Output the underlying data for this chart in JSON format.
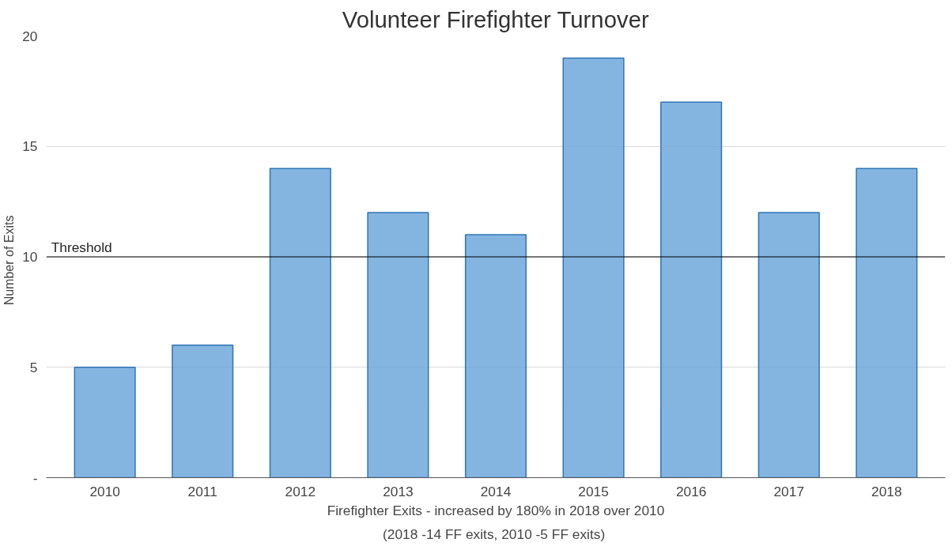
{
  "chart_data": {
    "type": "bar",
    "title": "Volunteer Firefighter Turnover",
    "ylabel": "Number  of  Exits",
    "xlabel": "Firefighter Exits - increased by 180% in 2018 over 2010",
    "annotations": [
      "(2018 -14 FF exits,  2010 -5 FF exits)"
    ],
    "categories": [
      "2010",
      "2011",
      "2012",
      "2013",
      "2014",
      "2015",
      "2016",
      "2017",
      "2018"
    ],
    "values": [
      5,
      6,
      14,
      12,
      11,
      19,
      17,
      12,
      14
    ],
    "color": "#6fa8dc",
    "ylim": [
      0,
      20
    ],
    "yticks": [
      {
        "value": 0,
        "label": "-"
      },
      5,
      10,
      15,
      20
    ],
    "grid": "y",
    "ref_lines": [
      {
        "axis": "y",
        "value": 10,
        "label": "Threshold",
        "color": "#000000"
      }
    ]
  }
}
